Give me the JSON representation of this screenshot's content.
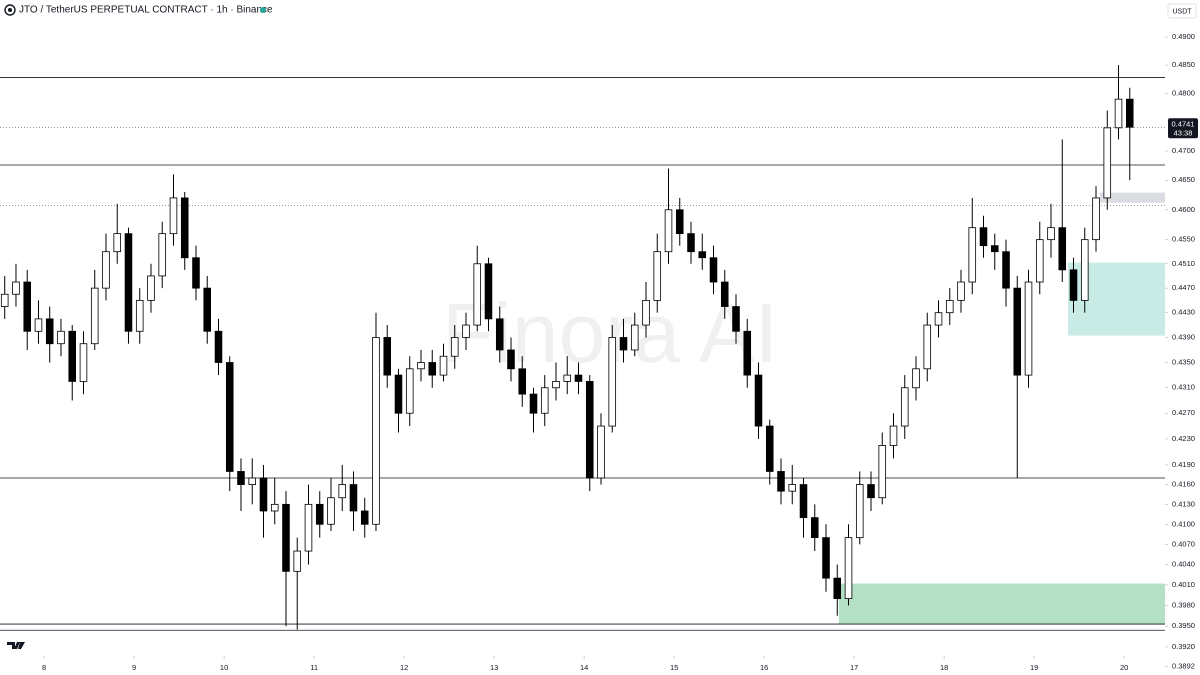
{
  "chart_data": {
    "type": "candlestick",
    "title": "JTO / TetherUS PERPETUAL CONTRACT · 1h · Binance",
    "currency": "USDT",
    "watermark": "Finora AI",
    "countdown": "43:38",
    "log_scale": true,
    "up_color": "#ffffff",
    "down_color": "#000000",
    "x": [
      7.5625,
      7.6875,
      7.8125,
      7.9375,
      8.0625,
      8.1875,
      8.3125,
      8.4375,
      8.5625,
      8.6875,
      8.8125,
      8.9375,
      9.0625,
      9.1875,
      9.3125,
      9.4375,
      9.5625,
      9.6875,
      9.8125,
      9.9375,
      10.0625,
      10.1875,
      10.3125,
      10.4375,
      10.5625,
      10.6875,
      10.8125,
      10.9375,
      11.0625,
      11.1875,
      11.3125,
      11.4375,
      11.5625,
      11.6875,
      11.8125,
      11.9375,
      12.0625,
      12.1875,
      12.3125,
      12.4375,
      12.5625,
      12.6875,
      12.8125,
      12.9375,
      13.0625,
      13.1875,
      13.3125,
      13.4375,
      13.5625,
      13.6875,
      13.8125,
      13.9375,
      14.0625,
      14.1875,
      14.3125,
      14.4375,
      14.5625,
      14.6875,
      14.8125,
      14.9375,
      15.0625,
      15.1875,
      15.3125,
      15.4375,
      15.5625,
      15.6875,
      15.8125,
      15.9375,
      16.0625,
      16.1875,
      16.3125,
      16.4375,
      16.5625,
      16.6875,
      16.8125,
      16.9375,
      17.0625,
      17.1875,
      17.3125,
      17.4375,
      17.5625,
      17.6875,
      17.8125,
      17.9375,
      18.0625,
      18.1875,
      18.3125,
      18.4375,
      18.5625,
      18.6875,
      18.8125,
      18.9375,
      19.0625,
      19.1875,
      19.3125,
      19.4375,
      19.5625,
      19.6875,
      19.8125,
      19.9375,
      20.0625
    ],
    "open": [
      0.444,
      0.446,
      0.448,
      0.44,
      0.442,
      0.438,
      0.44,
      0.432,
      0.438,
      0.447,
      0.453,
      0.456,
      0.44,
      0.445,
      0.449,
      0.456,
      0.462,
      0.452,
      0.447,
      0.44,
      0.435,
      0.418,
      0.416,
      0.417,
      0.412,
      0.413,
      0.403,
      0.406,
      0.413,
      0.41,
      0.414,
      0.416,
      0.412,
      0.41,
      0.439,
      0.433,
      0.427,
      0.434,
      0.435,
      0.433,
      0.436,
      0.439,
      0.441,
      0.451,
      0.442,
      0.437,
      0.434,
      0.43,
      0.427,
      0.431,
      0.432,
      0.433,
      0.432,
      0.417,
      0.425,
      0.439,
      0.437,
      0.441,
      0.445,
      0.453,
      0.46,
      0.456,
      0.453,
      0.452,
      0.448,
      0.444,
      0.44,
      0.433,
      0.425,
      0.418,
      0.415,
      0.416,
      0.411,
      0.408,
      0.402,
      0.399,
      0.408,
      0.416,
      0.414,
      0.422,
      0.425,
      0.431,
      0.434,
      0.441,
      0.443,
      0.445,
      0.448,
      0.457,
      0.454,
      0.453,
      0.447,
      0.433,
      0.448,
      0.455,
      0.457,
      0.45,
      0.445,
      0.455,
      0.462,
      0.474,
      0.479
    ],
    "high": [
      0.449,
      0.451,
      0.45,
      0.445,
      0.444,
      0.442,
      0.441,
      0.44,
      0.45,
      0.456,
      0.461,
      0.457,
      0.447,
      0.451,
      0.458,
      0.466,
      0.463,
      0.454,
      0.449,
      0.442,
      0.436,
      0.42,
      0.42,
      0.419,
      0.417,
      0.415,
      0.408,
      0.416,
      0.415,
      0.417,
      0.419,
      0.418,
      0.414,
      0.443,
      0.441,
      0.434,
      0.436,
      0.437,
      0.437,
      0.438,
      0.441,
      0.443,
      0.454,
      0.452,
      0.444,
      0.439,
      0.436,
      0.431,
      0.433,
      0.435,
      0.436,
      0.435,
      0.433,
      0.427,
      0.441,
      0.442,
      0.443,
      0.448,
      0.456,
      0.467,
      0.462,
      0.458,
      0.456,
      0.454,
      0.45,
      0.446,
      0.442,
      0.435,
      0.426,
      0.42,
      0.419,
      0.417,
      0.413,
      0.41,
      0.404,
      0.41,
      0.418,
      0.418,
      0.424,
      0.427,
      0.433,
      0.436,
      0.443,
      0.445,
      0.447,
      0.45,
      0.462,
      0.459,
      0.456,
      0.455,
      0.449,
      0.45,
      0.458,
      0.461,
      0.472,
      0.452,
      0.457,
      0.464,
      0.477,
      0.485,
      0.481
    ],
    "low": [
      0.442,
      0.444,
      0.437,
      0.438,
      0.435,
      0.436,
      0.429,
      0.43,
      0.437,
      0.445,
      0.451,
      0.438,
      0.438,
      0.443,
      0.447,
      0.454,
      0.45,
      0.445,
      0.438,
      0.433,
      0.415,
      0.412,
      0.413,
      0.408,
      0.41,
      0.395,
      0.3945,
      0.404,
      0.408,
      0.409,
      0.412,
      0.409,
      0.408,
      0.409,
      0.431,
      0.424,
      0.425,
      0.432,
      0.431,
      0.432,
      0.434,
      0.437,
      0.44,
      0.44,
      0.435,
      0.432,
      0.428,
      0.424,
      0.425,
      0.429,
      0.43,
      0.43,
      0.415,
      0.416,
      0.424,
      0.435,
      0.436,
      0.439,
      0.443,
      0.451,
      0.454,
      0.451,
      0.45,
      0.446,
      0.442,
      0.438,
      0.431,
      0.423,
      0.416,
      0.413,
      0.413,
      0.408,
      0.406,
      0.4,
      0.3965,
      0.398,
      0.407,
      0.412,
      0.413,
      0.42,
      0.423,
      0.429,
      0.432,
      0.439,
      0.441,
      0.443,
      0.446,
      0.452,
      0.45,
      0.444,
      0.417,
      0.431,
      0.446,
      0.452,
      0.448,
      0.443,
      0.443,
      0.453,
      0.46,
      0.472,
      0.465
    ],
    "close": [
      0.446,
      0.448,
      0.44,
      0.442,
      0.438,
      0.44,
      0.432,
      0.438,
      0.447,
      0.453,
      0.456,
      0.44,
      0.445,
      0.449,
      0.456,
      0.462,
      0.452,
      0.447,
      0.44,
      0.435,
      0.418,
      0.416,
      0.417,
      0.412,
      0.413,
      0.403,
      0.406,
      0.413,
      0.41,
      0.414,
      0.416,
      0.412,
      0.41,
      0.439,
      0.433,
      0.427,
      0.434,
      0.435,
      0.433,
      0.436,
      0.439,
      0.441,
      0.451,
      0.442,
      0.437,
      0.434,
      0.43,
      0.427,
      0.431,
      0.432,
      0.433,
      0.432,
      0.417,
      0.425,
      0.439,
      0.437,
      0.441,
      0.445,
      0.453,
      0.46,
      0.456,
      0.453,
      0.452,
      0.448,
      0.444,
      0.44,
      0.433,
      0.425,
      0.418,
      0.415,
      0.416,
      0.411,
      0.408,
      0.402,
      0.399,
      0.408,
      0.416,
      0.414,
      0.422,
      0.425,
      0.431,
      0.434,
      0.441,
      0.443,
      0.445,
      0.448,
      0.457,
      0.454,
      0.453,
      0.447,
      0.433,
      0.448,
      0.455,
      0.457,
      0.45,
      0.445,
      0.455,
      0.462,
      0.474,
      0.479,
      0.4741
    ],
    "xlim": [
      7.51,
      20.454
    ],
    "xticks": [
      8,
      9,
      10,
      11,
      12,
      13,
      14,
      15,
      16,
      17,
      18,
      19,
      20
    ],
    "ylim": [
      0.388,
      0.4967
    ],
    "yticks": [
      {
        "value": 0.49,
        "label": "0.4900"
      },
      {
        "value": 0.485,
        "label": "0.4850"
      },
      {
        "value": 0.48,
        "label": "0.4800"
      },
      {
        "value": 0.47,
        "label": "0.4700"
      },
      {
        "value": 0.465,
        "label": "0.4650"
      },
      {
        "value": 0.46,
        "label": "0.4600"
      },
      {
        "value": 0.455,
        "label": "0.4550"
      },
      {
        "value": 0.451,
        "label": "0.4510"
      },
      {
        "value": 0.447,
        "label": "0.4470"
      },
      {
        "value": 0.443,
        "label": "0.4430"
      },
      {
        "value": 0.439,
        "label": "0.4390"
      },
      {
        "value": 0.435,
        "label": "0.4350"
      },
      {
        "value": 0.431,
        "label": "0.4310"
      },
      {
        "value": 0.427,
        "label": "0.4270"
      },
      {
        "value": 0.423,
        "label": "0.4230"
      },
      {
        "value": 0.419,
        "label": "0.4190"
      },
      {
        "value": 0.416,
        "label": "0.4160"
      },
      {
        "value": 0.413,
        "label": "0.4130"
      },
      {
        "value": 0.41,
        "label": "0.4100"
      },
      {
        "value": 0.407,
        "label": "0.4070"
      },
      {
        "value": 0.404,
        "label": "0.4040"
      },
      {
        "value": 0.401,
        "label": "0.4010"
      },
      {
        "value": 0.398,
        "label": "0.3980"
      },
      {
        "value": 0.395,
        "label": "0.3950"
      },
      {
        "value": 0.392,
        "label": "0.3920"
      },
      {
        "value": 0.3892,
        "label": "0.3892"
      }
    ],
    "hlines": [
      0.4828,
      0.4676,
      0.417,
      0.3953,
      0.3944
    ],
    "dotted_lines": [
      0.4607
    ],
    "zones": [
      {
        "x0": 19.377,
        "top": 0.4512,
        "bottom": 0.4393,
        "color": "#c9ebe5"
      },
      {
        "x0": 16.83,
        "top": 0.4012,
        "bottom": 0.3953,
        "color": "#b4e0c6"
      },
      {
        "x0": 19.73,
        "top": 0.4629,
        "bottom": 0.4612,
        "color": "#dcdde2"
      }
    ]
  }
}
